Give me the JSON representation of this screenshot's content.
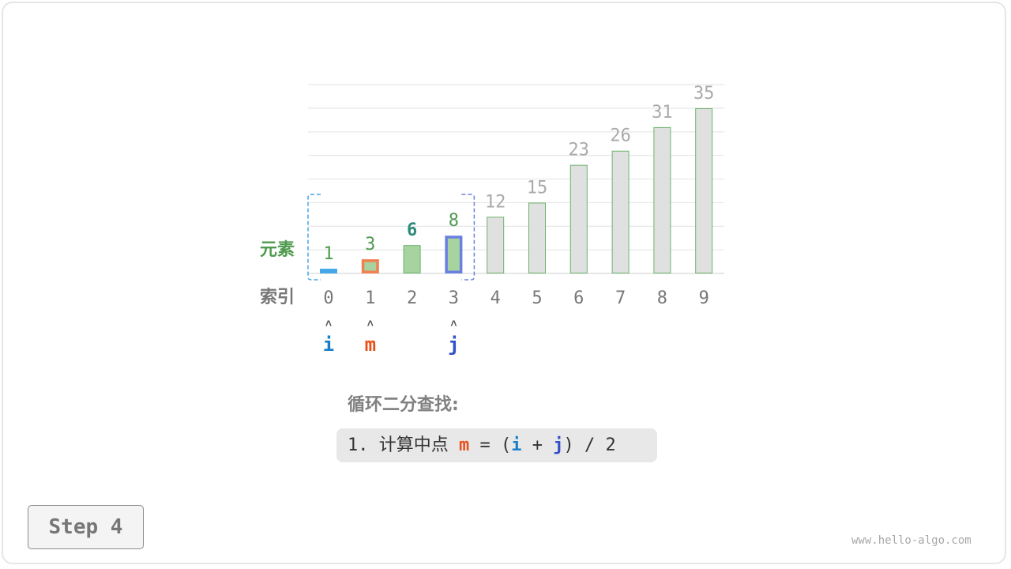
{
  "diagram": {
    "row_label_elements": "元素",
    "row_label_index": "索引",
    "values": [
      1,
      3,
      6,
      8,
      12,
      15,
      23,
      26,
      31,
      35
    ],
    "indices": [
      "0",
      "1",
      "2",
      "3",
      "4",
      "5",
      "6",
      "7",
      "8",
      "9"
    ],
    "active_range": [
      0,
      3
    ],
    "pointers": [
      {
        "label": "i",
        "index": 0,
        "color": "#1a7fc9"
      },
      {
        "label": "m",
        "index": 1,
        "color": "#e8501a"
      },
      {
        "label": "j",
        "index": 3,
        "color": "#3350c8"
      }
    ],
    "pointer_arrow": "˄",
    "highlight_index": 2,
    "colors": {
      "active_label": "#4f9a4f",
      "highlight_label": "#2e8a7a",
      "inactive_label": "#aaaaaa",
      "active_fill": "#a6d3a0",
      "inactive_fill": "#e0e0e0",
      "bar_border": "#6bb36b",
      "i_border": "#45a6e8",
      "m_border": "#f08050",
      "j_border": "#6a80e0",
      "range_left": "#45a6e8",
      "range_right": "#6a80e0"
    }
  },
  "caption": {
    "title": "循环二分查找:",
    "formula_prefix": "1. 计算中点 ",
    "m": "m",
    "eq": " = (",
    "i": "i",
    "plus": " + ",
    "j": "j",
    "suffix": ") / 2"
  },
  "step_label": "Step 4",
  "watermark": "www.hello-algo.com"
}
